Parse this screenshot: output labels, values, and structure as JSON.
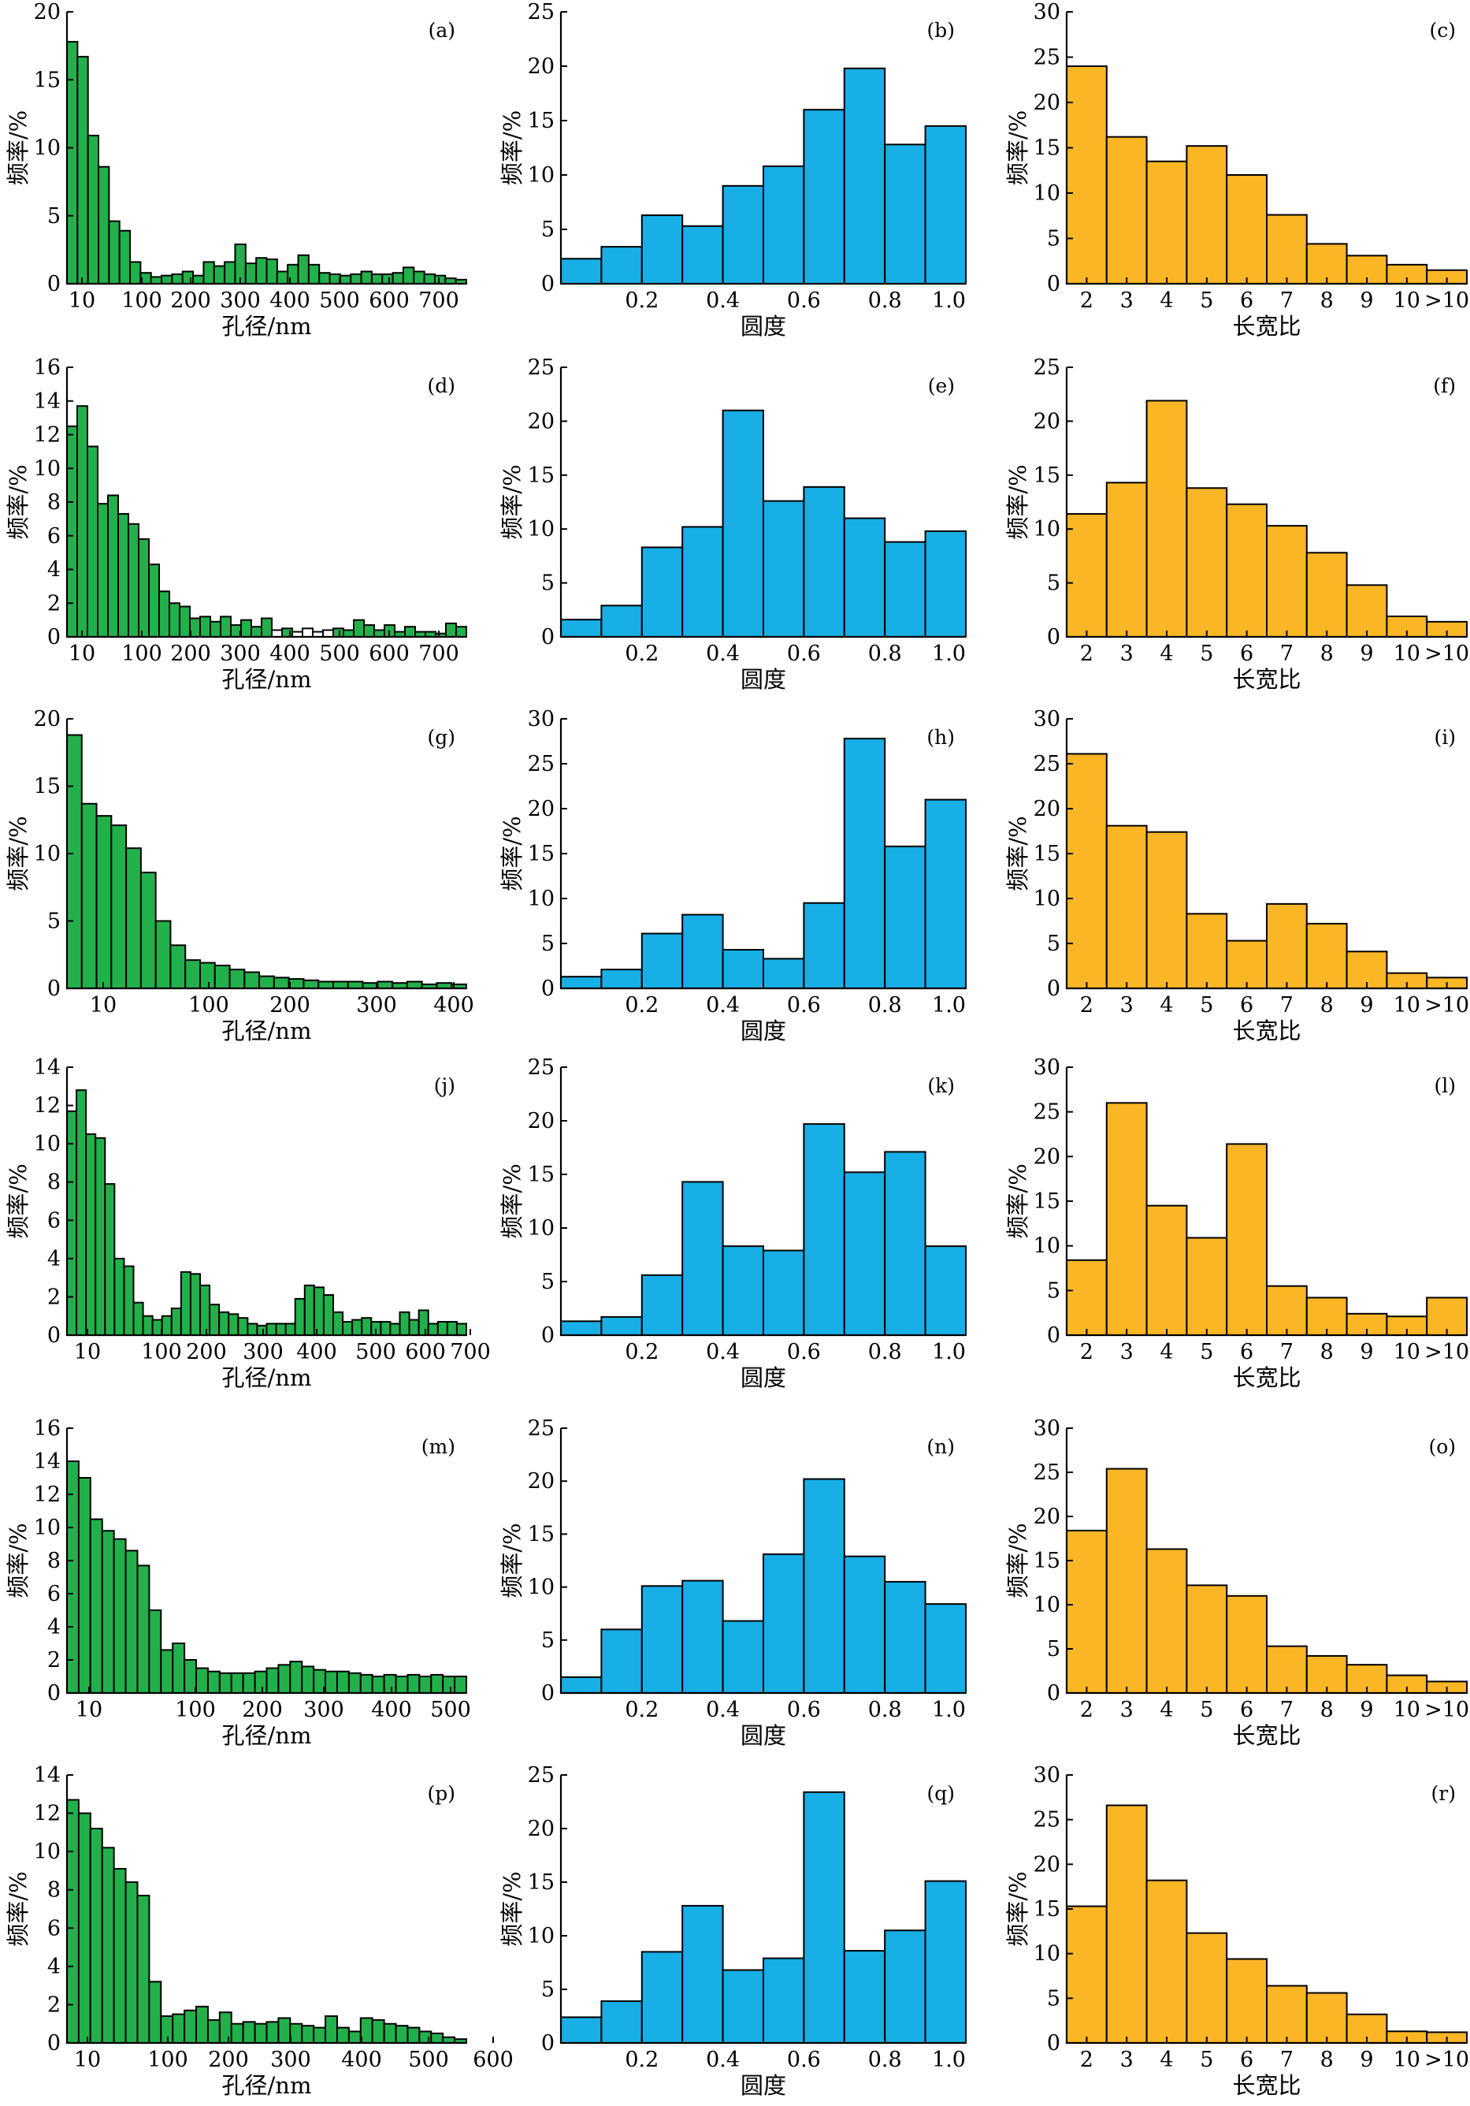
{
  "colors": {
    "pore": "#22b04b",
    "round": "#18aee6",
    "aspect": "#fbb625",
    "empty": "#ffffff"
  },
  "chart_data": [
    {
      "panel": "(a)",
      "type": "bar",
      "kind": "pore",
      "xlabel": "孔径/nm",
      "ylabel": "频率/%",
      "ylim": [
        0,
        20
      ],
      "yticks": [
        0,
        5,
        10,
        15,
        20
      ],
      "xticks": [
        "10",
        "100",
        "200",
        "300",
        "400",
        "500",
        "600",
        "700"
      ],
      "values": [
        17.8,
        16.7,
        10.9,
        8.6,
        4.6,
        3.9,
        1.6,
        0.8,
        0.5,
        0.6,
        0.7,
        0.9,
        0.6,
        1.6,
        1.3,
        1.6,
        2.9,
        1.5,
        1.9,
        1.8,
        0.9,
        1.4,
        2.1,
        1.4,
        0.8,
        0.7,
        0.6,
        0.7,
        0.9,
        0.7,
        0.7,
        0.8,
        1.2,
        0.9,
        0.7,
        0.6,
        0.4,
        0.3
      ],
      "open_bars": []
    },
    {
      "panel": "(b)",
      "type": "bar",
      "kind": "round",
      "xlabel": "圆度",
      "ylabel": "频率/%",
      "ylim": [
        0,
        25
      ],
      "yticks": [
        0,
        5,
        10,
        15,
        20,
        25
      ],
      "xticks": [
        "0.2",
        "0.4",
        "0.6",
        "0.8",
        "1.0"
      ],
      "values": [
        2.3,
        3.4,
        6.3,
        5.3,
        9.0,
        10.8,
        16.0,
        19.8,
        12.8,
        14.5
      ]
    },
    {
      "panel": "(c)",
      "type": "bar",
      "kind": "aspect",
      "xlabel": "长宽比",
      "ylabel": "频率/%",
      "ylim": [
        0,
        30
      ],
      "yticks": [
        0,
        5,
        10,
        15,
        20,
        25,
        30
      ],
      "xticks": [
        "2",
        "3",
        "4",
        "5",
        "6",
        "7",
        "8",
        "9",
        "10",
        ">10"
      ],
      "values": [
        24.0,
        16.2,
        13.5,
        15.2,
        12.0,
        7.6,
        4.4,
        3.1,
        2.1,
        1.5
      ]
    },
    {
      "panel": "(d)",
      "type": "bar",
      "kind": "pore",
      "xlabel": "孔径/nm",
      "ylabel": "频率/%",
      "ylim": [
        0,
        16
      ],
      "yticks": [
        0,
        2,
        4,
        6,
        8,
        10,
        12,
        14,
        16
      ],
      "xticks": [
        "10",
        "100",
        "200",
        "300",
        "400",
        "500",
        "600",
        "700"
      ],
      "values": [
        12.5,
        13.7,
        11.3,
        7.9,
        8.4,
        7.3,
        6.7,
        5.8,
        4.3,
        2.7,
        2.0,
        1.8,
        1.1,
        1.2,
        0.9,
        1.2,
        0.7,
        1.0,
        0.6,
        1.1,
        0.4,
        0.5,
        0.3,
        0.5,
        0.3,
        0.4,
        0.5,
        0.4,
        1.0,
        0.7,
        0.4,
        0.7,
        0.3,
        0.6,
        0.3,
        0.3,
        0.2,
        0.8,
        0.6
      ],
      "open_bars": [
        20,
        22,
        23,
        24,
        25
      ]
    },
    {
      "panel": "(e)",
      "type": "bar",
      "kind": "round",
      "xlabel": "圆度",
      "ylabel": "频率/%",
      "ylim": [
        0,
        25
      ],
      "yticks": [
        0,
        5,
        10,
        15,
        20,
        25
      ],
      "xticks": [
        "0.2",
        "0.4",
        "0.6",
        "0.8",
        "1.0"
      ],
      "values": [
        1.6,
        2.9,
        8.3,
        10.2,
        21.0,
        12.6,
        13.9,
        11.0,
        8.8,
        9.8
      ]
    },
    {
      "panel": "(f)",
      "type": "bar",
      "kind": "aspect",
      "xlabel": "长宽比",
      "ylabel": "频率/%",
      "ylim": [
        0,
        25
      ],
      "yticks": [
        0,
        5,
        10,
        15,
        20,
        25
      ],
      "xticks": [
        "2",
        "3",
        "4",
        "5",
        "6",
        "7",
        "8",
        "9",
        "10",
        ">10"
      ],
      "values": [
        11.4,
        14.3,
        21.9,
        13.8,
        12.3,
        10.3,
        7.8,
        4.8,
        1.9,
        1.4
      ]
    },
    {
      "panel": "(g)",
      "type": "bar",
      "kind": "pore",
      "xlabel": "孔径/nm",
      "ylabel": "频率/%",
      "ylim": [
        0,
        20
      ],
      "yticks": [
        0,
        5,
        10,
        15,
        20
      ],
      "xticks": [
        "10",
        "100",
        "200",
        "300",
        "400"
      ],
      "values": [
        18.8,
        13.7,
        12.8,
        12.1,
        10.4,
        8.6,
        5.0,
        3.2,
        2.1,
        1.9,
        1.7,
        1.4,
        1.2,
        0.9,
        0.8,
        0.7,
        0.6,
        0.5,
        0.5,
        0.5,
        0.4,
        0.5,
        0.4,
        0.5,
        0.3,
        0.4,
        0.3
      ],
      "open_bars": []
    },
    {
      "panel": "(h)",
      "type": "bar",
      "kind": "round",
      "xlabel": "圆度",
      "ylabel": "频率/%",
      "ylim": [
        0,
        30
      ],
      "yticks": [
        0,
        5,
        10,
        15,
        20,
        25,
        30
      ],
      "xticks": [
        "0.2",
        "0.4",
        "0.6",
        "0.8",
        "1.0"
      ],
      "values": [
        1.3,
        2.1,
        6.1,
        8.2,
        4.3,
        3.3,
        9.5,
        27.8,
        15.8,
        21.0
      ]
    },
    {
      "panel": "(i)",
      "type": "bar",
      "kind": "aspect",
      "xlabel": "长宽比",
      "ylabel": "频率/%",
      "ylim": [
        0,
        30
      ],
      "yticks": [
        0,
        5,
        10,
        15,
        20,
        25,
        30
      ],
      "xticks": [
        "2",
        "3",
        "4",
        "5",
        "6",
        "7",
        "8",
        "9",
        "10",
        ">10"
      ],
      "values": [
        26.1,
        18.1,
        17.4,
        8.3,
        5.3,
        9.4,
        7.2,
        4.1,
        1.7,
        1.2
      ]
    },
    {
      "panel": "(j)",
      "type": "bar",
      "kind": "pore",
      "xlabel": "孔径/nm",
      "ylabel": "频率/%",
      "ylim": [
        0,
        14
      ],
      "yticks": [
        0,
        2,
        4,
        6,
        8,
        10,
        12,
        14
      ],
      "xticks": [
        "10",
        "100",
        "200",
        "300",
        "400",
        "500",
        "600",
        "700"
      ],
      "values": [
        11.7,
        12.8,
        10.5,
        10.3,
        7.9,
        4.0,
        3.6,
        1.7,
        1.0,
        0.8,
        1.0,
        1.4,
        3.3,
        3.2,
        2.6,
        1.6,
        1.2,
        1.1,
        0.9,
        0.6,
        0.5,
        0.6,
        0.6,
        0.6,
        1.9,
        2.6,
        2.5,
        2.1,
        1.2,
        0.7,
        0.8,
        0.9,
        0.7,
        0.7,
        0.6,
        1.2,
        0.8,
        1.3,
        0.6,
        0.7,
        0.7,
        0.6
      ],
      "open_bars": []
    },
    {
      "panel": "(k)",
      "type": "bar",
      "kind": "round",
      "xlabel": "圆度",
      "ylabel": "频率/%",
      "ylim": [
        0,
        25
      ],
      "yticks": [
        0,
        5,
        10,
        15,
        20,
        25
      ],
      "xticks": [
        "0.2",
        "0.4",
        "0.6",
        "0.8",
        "1.0"
      ],
      "values": [
        1.3,
        1.7,
        5.6,
        14.3,
        8.3,
        7.9,
        19.7,
        15.2,
        17.1,
        8.3
      ]
    },
    {
      "panel": "(l)",
      "type": "bar",
      "kind": "aspect",
      "xlabel": "长宽比",
      "ylabel": "频率/%",
      "ylim": [
        0,
        30
      ],
      "yticks": [
        0,
        5,
        10,
        15,
        20,
        25,
        30
      ],
      "xticks": [
        "2",
        "3",
        "4",
        "5",
        "6",
        "7",
        "8",
        "9",
        "10",
        ">10"
      ],
      "values": [
        8.4,
        26.0,
        14.5,
        10.9,
        21.4,
        5.5,
        4.2,
        2.4,
        2.1,
        4.2
      ]
    },
    {
      "panel": "(m)",
      "type": "bar",
      "kind": "pore",
      "xlabel": "孔径/nm",
      "ylabel": "频率/%",
      "ylim": [
        0,
        16
      ],
      "yticks": [
        0,
        2,
        4,
        6,
        8,
        10,
        12,
        14,
        16
      ],
      "xticks": [
        "10",
        "100",
        "200",
        "300",
        "400",
        "500"
      ],
      "values": [
        14.0,
        13.0,
        10.5,
        9.8,
        9.3,
        8.6,
        7.7,
        5.0,
        2.6,
        3.0,
        2.0,
        1.5,
        1.3,
        1.2,
        1.2,
        1.2,
        1.3,
        1.5,
        1.7,
        1.9,
        1.6,
        1.4,
        1.3,
        1.3,
        1.2,
        1.1,
        1.0,
        1.1,
        1.0,
        1.1,
        1.0,
        1.1,
        1.0,
        1.0
      ],
      "open_bars": []
    },
    {
      "panel": "(n)",
      "type": "bar",
      "kind": "round",
      "xlabel": "圆度",
      "ylabel": "频率/%",
      "ylim": [
        0,
        25
      ],
      "yticks": [
        0,
        5,
        10,
        15,
        20,
        25
      ],
      "xticks": [
        "0.2",
        "0.4",
        "0.6",
        "0.8",
        "1.0"
      ],
      "values": [
        1.5,
        6.0,
        10.1,
        10.6,
        6.8,
        13.1,
        20.2,
        12.9,
        10.5,
        8.4
      ]
    },
    {
      "panel": "(o)",
      "type": "bar",
      "kind": "aspect",
      "xlabel": "长宽比",
      "ylabel": "频率/%",
      "ylim": [
        0,
        30
      ],
      "yticks": [
        0,
        5,
        10,
        15,
        20,
        25,
        30
      ],
      "xticks": [
        "2",
        "3",
        "4",
        "5",
        "6",
        "7",
        "8",
        "9",
        "10",
        ">10"
      ],
      "values": [
        18.4,
        25.4,
        16.3,
        12.2,
        11.0,
        5.3,
        4.2,
        3.2,
        2.0,
        1.3
      ]
    },
    {
      "panel": "(p)",
      "type": "bar",
      "kind": "pore",
      "xlabel": "孔径/nm",
      "ylabel": "频率/%",
      "ylim": [
        0,
        14
      ],
      "yticks": [
        0,
        2,
        4,
        6,
        8,
        10,
        12,
        14
      ],
      "xticks": [
        "10",
        "100",
        "200",
        "300",
        "400",
        "500",
        "600"
      ],
      "values": [
        12.7,
        12.0,
        11.2,
        10.2,
        9.1,
        8.4,
        7.7,
        3.2,
        1.4,
        1.5,
        1.7,
        1.9,
        1.2,
        1.6,
        1.0,
        1.1,
        1.0,
        1.1,
        1.3,
        1.0,
        0.9,
        0.8,
        1.4,
        0.8,
        0.6,
        1.3,
        1.2,
        1.0,
        0.9,
        0.8,
        0.6,
        0.5,
        0.3,
        0.2
      ],
      "open_bars": []
    },
    {
      "panel": "(q)",
      "type": "bar",
      "kind": "round",
      "xlabel": "圆度",
      "ylabel": "频率/%",
      "ylim": [
        0,
        25
      ],
      "yticks": [
        0,
        5,
        10,
        15,
        20,
        25
      ],
      "xticks": [
        "0.2",
        "0.4",
        "0.6",
        "0.8",
        "1.0"
      ],
      "values": [
        2.4,
        3.9,
        8.5,
        12.8,
        6.8,
        7.9,
        23.4,
        8.6,
        10.5,
        15.1
      ]
    },
    {
      "panel": "(r)",
      "type": "bar",
      "kind": "aspect",
      "xlabel": "长宽比",
      "ylabel": "频率/%",
      "ylim": [
        0,
        30
      ],
      "yticks": [
        0,
        5,
        10,
        15,
        20,
        25,
        30
      ],
      "xticks": [
        "2",
        "3",
        "4",
        "5",
        "6",
        "7",
        "8",
        "9",
        "10",
        ">10"
      ],
      "values": [
        15.3,
        26.6,
        18.2,
        12.3,
        9.4,
        6.4,
        5.6,
        3.2,
        1.3,
        1.2
      ]
    }
  ]
}
